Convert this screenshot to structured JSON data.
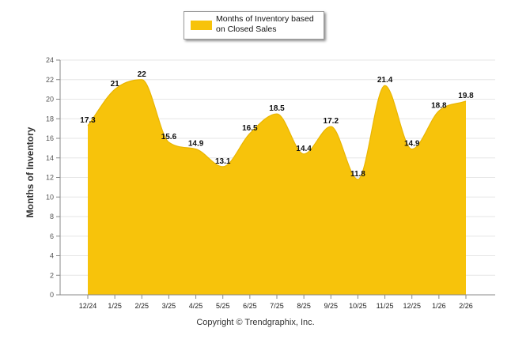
{
  "chart_data": {
    "type": "area",
    "series": [
      {
        "name": "Months of Inventory based on Closed Sales",
        "values": [
          17.3,
          21,
          22,
          15.6,
          14.9,
          13.1,
          16.5,
          18.5,
          14.4,
          17.2,
          11.8,
          21.4,
          14.9,
          18.8,
          19.8
        ],
        "labels": [
          "17.3",
          "21",
          "22",
          "15.6",
          "14.9",
          "13.1",
          "16.5",
          "18.5",
          "14.4",
          "17.2",
          "11.8",
          "21.4",
          "14.9",
          "18.8",
          "19.8"
        ]
      }
    ],
    "categories": [
      "12/24",
      "1/25",
      "2/25",
      "3/25",
      "4/25",
      "5/25",
      "6/25",
      "7/25",
      "8/25",
      "9/25",
      "10/25",
      "11/25",
      "12/25",
      "1/26",
      "2/26"
    ],
    "title": "",
    "xlabel": "",
    "ylabel": "Months of Inventory",
    "ylim": [
      0,
      24
    ],
    "yticks": [
      0,
      2,
      4,
      6,
      8,
      10,
      12,
      14,
      16,
      18,
      20,
      22,
      24
    ],
    "legend": {
      "label": "Months of Inventory based on Closed Sales",
      "position": "top-center"
    },
    "grid": true,
    "colors": {
      "fill": "#F7C30B",
      "grid": "#e6e6e6",
      "axis": "#888888"
    }
  },
  "footer": {
    "copyright": "Copyright © Trendgraphix, Inc."
  }
}
